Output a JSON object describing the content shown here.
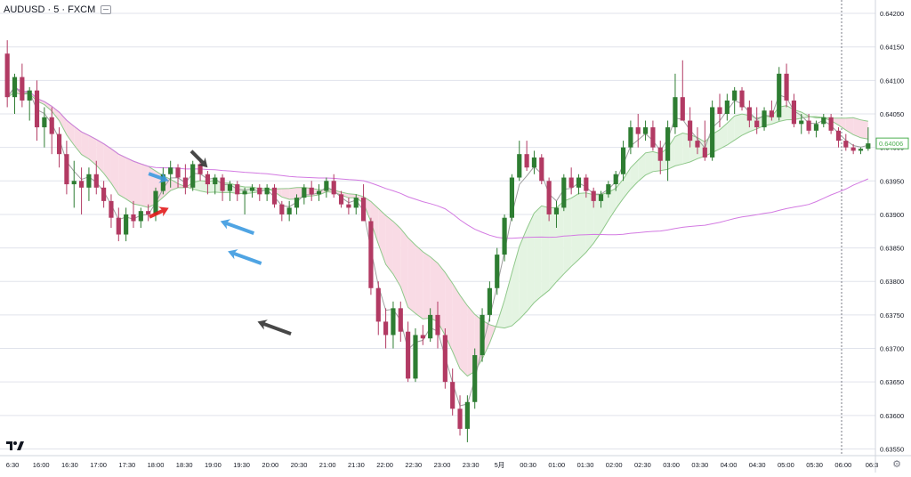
{
  "header": {
    "symbol": "AUDUSD · 5 · FXCM"
  },
  "colors": {
    "up_candle": "#2e7d32",
    "down_candle": "#b23a63",
    "fast_ma": "#9e9e9e",
    "cloud_bull": "#e4f4e2",
    "cloud_bear": "#f9dbe5",
    "cloud_edge": "#8fc88a",
    "slow_ma": "#d37ae2",
    "last_price_label": "#4caf50",
    "arrow_blue": "#3c9ae0",
    "arrow_black": "#333333",
    "arrow_red": "#e21b1b",
    "grid": "#e0e3eb"
  },
  "chart_data": {
    "type": "candlestick",
    "symbol": "AUDUSD",
    "timeframe": "5",
    "source": "FXCM",
    "ylim": [
      0.6355,
      0.6425
    ],
    "y_ticks": [
      "0.64200",
      "0.64150",
      "0.64100",
      "0.64050",
      "0.64000",
      "0.63950",
      "0.63900",
      "0.63850",
      "0.63800",
      "0.63750",
      "0.63700",
      "0.63650",
      "0.63600",
      "0.63550"
    ],
    "x_ticks": [
      "6:30",
      "16:00",
      "16:30",
      "17:00",
      "17:30",
      "18:00",
      "18:30",
      "19:00",
      "19:30",
      "20:00",
      "20:30",
      "21:00",
      "21:30",
      "22:00",
      "22:30",
      "23:00",
      "23:30",
      "5月",
      "00:30",
      "01:00",
      "01:30",
      "02:00",
      "02:30",
      "03:00",
      "03:30",
      "04:00",
      "04:30",
      "05:00",
      "05:30",
      "06:00",
      "06:3"
    ],
    "last_price": 0.64006,
    "last_price_label": "0.64006",
    "candles": [
      {
        "o": 0.6414,
        "h": 0.6416,
        "l": 0.6406,
        "c": 0.64075
      },
      {
        "o": 0.64075,
        "h": 0.6411,
        "l": 0.6405,
        "c": 0.64105
      },
      {
        "o": 0.64105,
        "h": 0.64125,
        "l": 0.6406,
        "c": 0.6407
      },
      {
        "o": 0.6407,
        "h": 0.6409,
        "l": 0.6404,
        "c": 0.64085
      },
      {
        "o": 0.64085,
        "h": 0.641,
        "l": 0.6401,
        "c": 0.6403
      },
      {
        "o": 0.6403,
        "h": 0.6406,
        "l": 0.64,
        "c": 0.64045
      },
      {
        "o": 0.64045,
        "h": 0.6406,
        "l": 0.6399,
        "c": 0.6402
      },
      {
        "o": 0.6402,
        "h": 0.6403,
        "l": 0.6397,
        "c": 0.6399
      },
      {
        "o": 0.6399,
        "h": 0.6401,
        "l": 0.6393,
        "c": 0.63945
      },
      {
        "o": 0.63945,
        "h": 0.6398,
        "l": 0.6391,
        "c": 0.6395
      },
      {
        "o": 0.6395,
        "h": 0.6397,
        "l": 0.639,
        "c": 0.6394
      },
      {
        "o": 0.6394,
        "h": 0.6397,
        "l": 0.6392,
        "c": 0.6396
      },
      {
        "o": 0.6396,
        "h": 0.6398,
        "l": 0.6393,
        "c": 0.6394
      },
      {
        "o": 0.6394,
        "h": 0.6395,
        "l": 0.6391,
        "c": 0.6392
      },
      {
        "o": 0.6392,
        "h": 0.6393,
        "l": 0.6388,
        "c": 0.63895
      },
      {
        "o": 0.63895,
        "h": 0.6391,
        "l": 0.6386,
        "c": 0.6387
      },
      {
        "o": 0.6387,
        "h": 0.6391,
        "l": 0.6386,
        "c": 0.639
      },
      {
        "o": 0.639,
        "h": 0.6392,
        "l": 0.6388,
        "c": 0.6389
      },
      {
        "o": 0.6389,
        "h": 0.6391,
        "l": 0.6388,
        "c": 0.63905
      },
      {
        "o": 0.63905,
        "h": 0.63915,
        "l": 0.6389,
        "c": 0.639
      },
      {
        "o": 0.639,
        "h": 0.6394,
        "l": 0.6389,
        "c": 0.63935
      },
      {
        "o": 0.63935,
        "h": 0.6397,
        "l": 0.6393,
        "c": 0.6396
      },
      {
        "o": 0.6396,
        "h": 0.6398,
        "l": 0.6394,
        "c": 0.6397
      },
      {
        "o": 0.6397,
        "h": 0.63975,
        "l": 0.6394,
        "c": 0.63955
      },
      {
        "o": 0.63955,
        "h": 0.63975,
        "l": 0.6393,
        "c": 0.6394
      },
      {
        "o": 0.6394,
        "h": 0.6398,
        "l": 0.63935,
        "c": 0.63975
      },
      {
        "o": 0.63975,
        "h": 0.6398,
        "l": 0.6395,
        "c": 0.6396
      },
      {
        "o": 0.6396,
        "h": 0.63965,
        "l": 0.6393,
        "c": 0.63945
      },
      {
        "o": 0.63945,
        "h": 0.6396,
        "l": 0.6393,
        "c": 0.63955
      },
      {
        "o": 0.63955,
        "h": 0.6396,
        "l": 0.6392,
        "c": 0.63935
      },
      {
        "o": 0.63935,
        "h": 0.6395,
        "l": 0.6392,
        "c": 0.63945
      },
      {
        "o": 0.63945,
        "h": 0.6395,
        "l": 0.6392,
        "c": 0.6393
      },
      {
        "o": 0.6393,
        "h": 0.6394,
        "l": 0.639,
        "c": 0.63935
      },
      {
        "o": 0.63935,
        "h": 0.63945,
        "l": 0.63925,
        "c": 0.6394
      },
      {
        "o": 0.6394,
        "h": 0.63945,
        "l": 0.6392,
        "c": 0.6393
      },
      {
        "o": 0.6393,
        "h": 0.63945,
        "l": 0.6392,
        "c": 0.6394
      },
      {
        "o": 0.6394,
        "h": 0.63945,
        "l": 0.6391,
        "c": 0.63915
      },
      {
        "o": 0.63915,
        "h": 0.6392,
        "l": 0.6389,
        "c": 0.639
      },
      {
        "o": 0.639,
        "h": 0.6392,
        "l": 0.6389,
        "c": 0.6391
      },
      {
        "o": 0.6391,
        "h": 0.6393,
        "l": 0.639,
        "c": 0.63925
      },
      {
        "o": 0.63925,
        "h": 0.63945,
        "l": 0.63915,
        "c": 0.6394
      },
      {
        "o": 0.6394,
        "h": 0.6395,
        "l": 0.6392,
        "c": 0.6393
      },
      {
        "o": 0.6393,
        "h": 0.63945,
        "l": 0.6392,
        "c": 0.63935
      },
      {
        "o": 0.63935,
        "h": 0.63955,
        "l": 0.63925,
        "c": 0.6395
      },
      {
        "o": 0.6395,
        "h": 0.6396,
        "l": 0.63925,
        "c": 0.6393
      },
      {
        "o": 0.6393,
        "h": 0.63935,
        "l": 0.6391,
        "c": 0.63915
      },
      {
        "o": 0.63915,
        "h": 0.63925,
        "l": 0.639,
        "c": 0.6391
      },
      {
        "o": 0.6391,
        "h": 0.6393,
        "l": 0.639,
        "c": 0.63925
      },
      {
        "o": 0.63925,
        "h": 0.63945,
        "l": 0.6389,
        "c": 0.6389
      },
      {
        "o": 0.6389,
        "h": 0.63895,
        "l": 0.6378,
        "c": 0.6379
      },
      {
        "o": 0.6379,
        "h": 0.638,
        "l": 0.6372,
        "c": 0.6374
      },
      {
        "o": 0.6374,
        "h": 0.6376,
        "l": 0.637,
        "c": 0.6372
      },
      {
        "o": 0.6372,
        "h": 0.6377,
        "l": 0.637,
        "c": 0.6376
      },
      {
        "o": 0.6376,
        "h": 0.6377,
        "l": 0.6371,
        "c": 0.63725
      },
      {
        "o": 0.63725,
        "h": 0.6374,
        "l": 0.6365,
        "c": 0.63655
      },
      {
        "o": 0.63655,
        "h": 0.6373,
        "l": 0.6365,
        "c": 0.6372
      },
      {
        "o": 0.6372,
        "h": 0.63735,
        "l": 0.63705,
        "c": 0.63715
      },
      {
        "o": 0.63715,
        "h": 0.6376,
        "l": 0.6371,
        "c": 0.6375
      },
      {
        "o": 0.6375,
        "h": 0.6377,
        "l": 0.637,
        "c": 0.6372
      },
      {
        "o": 0.6372,
        "h": 0.6373,
        "l": 0.6364,
        "c": 0.6365
      },
      {
        "o": 0.6365,
        "h": 0.6367,
        "l": 0.636,
        "c": 0.6361
      },
      {
        "o": 0.6361,
        "h": 0.6363,
        "l": 0.6357,
        "c": 0.6358
      },
      {
        "o": 0.6358,
        "h": 0.6363,
        "l": 0.6356,
        "c": 0.6362
      },
      {
        "o": 0.6362,
        "h": 0.637,
        "l": 0.6361,
        "c": 0.6369
      },
      {
        "o": 0.6369,
        "h": 0.6376,
        "l": 0.6368,
        "c": 0.6375
      },
      {
        "o": 0.6375,
        "h": 0.638,
        "l": 0.6374,
        "c": 0.6379
      },
      {
        "o": 0.6379,
        "h": 0.6385,
        "l": 0.6378,
        "c": 0.6384
      },
      {
        "o": 0.6384,
        "h": 0.639,
        "l": 0.6383,
        "c": 0.63895
      },
      {
        "o": 0.63895,
        "h": 0.6396,
        "l": 0.6389,
        "c": 0.63955
      },
      {
        "o": 0.63955,
        "h": 0.6401,
        "l": 0.6395,
        "c": 0.6399
      },
      {
        "o": 0.6399,
        "h": 0.6401,
        "l": 0.63965,
        "c": 0.6397
      },
      {
        "o": 0.6397,
        "h": 0.63995,
        "l": 0.6396,
        "c": 0.63985
      },
      {
        "o": 0.63985,
        "h": 0.6399,
        "l": 0.63945,
        "c": 0.6395
      },
      {
        "o": 0.6395,
        "h": 0.63955,
        "l": 0.6389,
        "c": 0.639
      },
      {
        "o": 0.639,
        "h": 0.6392,
        "l": 0.6388,
        "c": 0.6391
      },
      {
        "o": 0.6391,
        "h": 0.6396,
        "l": 0.63905,
        "c": 0.63955
      },
      {
        "o": 0.63955,
        "h": 0.6397,
        "l": 0.6393,
        "c": 0.6394
      },
      {
        "o": 0.6394,
        "h": 0.6396,
        "l": 0.6393,
        "c": 0.63955
      },
      {
        "o": 0.63955,
        "h": 0.6396,
        "l": 0.63925,
        "c": 0.63935
      },
      {
        "o": 0.63935,
        "h": 0.6394,
        "l": 0.6391,
        "c": 0.6392
      },
      {
        "o": 0.6392,
        "h": 0.63935,
        "l": 0.6391,
        "c": 0.6393
      },
      {
        "o": 0.6393,
        "h": 0.6395,
        "l": 0.63925,
        "c": 0.63945
      },
      {
        "o": 0.63945,
        "h": 0.63965,
        "l": 0.63935,
        "c": 0.6396
      },
      {
        "o": 0.6396,
        "h": 0.6401,
        "l": 0.6395,
        "c": 0.64
      },
      {
        "o": 0.64,
        "h": 0.6404,
        "l": 0.6399,
        "c": 0.6403
      },
      {
        "o": 0.6403,
        "h": 0.6405,
        "l": 0.64,
        "c": 0.6402
      },
      {
        "o": 0.6402,
        "h": 0.6404,
        "l": 0.6401,
        "c": 0.6403
      },
      {
        "o": 0.6403,
        "h": 0.6404,
        "l": 0.63995,
        "c": 0.64
      },
      {
        "o": 0.64,
        "h": 0.6401,
        "l": 0.6396,
        "c": 0.6398
      },
      {
        "o": 0.6398,
        "h": 0.6404,
        "l": 0.6395,
        "c": 0.6403
      },
      {
        "o": 0.6403,
        "h": 0.6411,
        "l": 0.6402,
        "c": 0.64075
      },
      {
        "o": 0.64075,
        "h": 0.6413,
        "l": 0.6404,
        "c": 0.6404
      },
      {
        "o": 0.6404,
        "h": 0.6406,
        "l": 0.64,
        "c": 0.6401
      },
      {
        "o": 0.6401,
        "h": 0.6403,
        "l": 0.6399,
        "c": 0.64
      },
      {
        "o": 0.64,
        "h": 0.6404,
        "l": 0.6398,
        "c": 0.63985
      },
      {
        "o": 0.63985,
        "h": 0.6407,
        "l": 0.6398,
        "c": 0.6406
      },
      {
        "o": 0.6406,
        "h": 0.6408,
        "l": 0.6403,
        "c": 0.6405
      },
      {
        "o": 0.6405,
        "h": 0.6408,
        "l": 0.6404,
        "c": 0.6407
      },
      {
        "o": 0.6407,
        "h": 0.6409,
        "l": 0.6405,
        "c": 0.64085
      },
      {
        "o": 0.64085,
        "h": 0.6409,
        "l": 0.64055,
        "c": 0.6406
      },
      {
        "o": 0.6406,
        "h": 0.6407,
        "l": 0.6403,
        "c": 0.6404
      },
      {
        "o": 0.6404,
        "h": 0.6406,
        "l": 0.6402,
        "c": 0.6403
      },
      {
        "o": 0.6403,
        "h": 0.6406,
        "l": 0.64025,
        "c": 0.64055
      },
      {
        "o": 0.64055,
        "h": 0.6407,
        "l": 0.6404,
        "c": 0.64045
      },
      {
        "o": 0.64045,
        "h": 0.6412,
        "l": 0.6404,
        "c": 0.6411
      },
      {
        "o": 0.6411,
        "h": 0.64125,
        "l": 0.6406,
        "c": 0.6407
      },
      {
        "o": 0.6407,
        "h": 0.6408,
        "l": 0.6403,
        "c": 0.64035
      },
      {
        "o": 0.64035,
        "h": 0.6405,
        "l": 0.6402,
        "c": 0.6404
      },
      {
        "o": 0.6404,
        "h": 0.6405,
        "l": 0.6402,
        "c": 0.64025
      },
      {
        "o": 0.64025,
        "h": 0.6404,
        "l": 0.64015,
        "c": 0.64035
      },
      {
        "o": 0.64035,
        "h": 0.6405,
        "l": 0.6403,
        "c": 0.64045
      },
      {
        "o": 0.64045,
        "h": 0.6405,
        "l": 0.6402,
        "c": 0.64025
      },
      {
        "o": 0.64025,
        "h": 0.6403,
        "l": 0.64,
        "c": 0.6401
      },
      {
        "o": 0.6401,
        "h": 0.6402,
        "l": 0.63995,
        "c": 0.64
      },
      {
        "o": 0.64,
        "h": 0.64005,
        "l": 0.6399,
        "c": 0.63995
      },
      {
        "o": 0.63995,
        "h": 0.64,
        "l": 0.6399,
        "c": 0.63998
      },
      {
        "o": 0.63998,
        "h": 0.6403,
        "l": 0.63995,
        "c": 0.64006
      }
    ],
    "annotations": [
      {
        "type": "arrow",
        "color": "blue",
        "candle": 22,
        "price": 0.6395,
        "side": "left"
      },
      {
        "type": "arrow",
        "color": "black",
        "candle": 27,
        "price": 0.6397,
        "side": "above"
      },
      {
        "type": "arrow",
        "color": "red",
        "candle": 22,
        "price": 0.63915,
        "side": "below-left"
      },
      {
        "type": "arrow",
        "color": "blue",
        "candle": 28,
        "price": 0.6389,
        "side": "right"
      },
      {
        "type": "arrow",
        "color": "blue",
        "candle": 29,
        "price": 0.63845,
        "side": "right"
      },
      {
        "type": "arrow",
        "color": "black",
        "candle": 33,
        "price": 0.6374,
        "side": "right"
      }
    ]
  }
}
